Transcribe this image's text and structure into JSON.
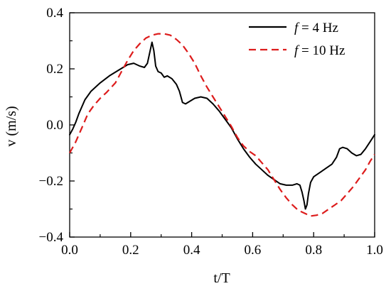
{
  "chart_data": {
    "type": "line",
    "title": "",
    "xlabel": "t/T",
    "ylabel": "v (m/s)",
    "xlim": [
      0.0,
      1.0
    ],
    "ylim": [
      -0.4,
      0.4
    ],
    "xticks": [
      "0.0",
      "0.2",
      "0.4",
      "0.6",
      "0.8",
      "1.0"
    ],
    "yticks": [
      "0.4",
      "0.2",
      "0.0",
      "−0.2",
      "−0.4"
    ],
    "grid": false,
    "legend_position": "top-right",
    "series": [
      {
        "name": "f = 4 Hz",
        "legend_italic": "f",
        "legend_rest": " = 4 Hz",
        "color": "#000000",
        "style": "solid",
        "points": [
          [
            0.0,
            -0.035
          ],
          [
            0.01,
            -0.015
          ],
          [
            0.02,
            0.01
          ],
          [
            0.03,
            0.04
          ],
          [
            0.05,
            0.09
          ],
          [
            0.07,
            0.12
          ],
          [
            0.1,
            0.15
          ],
          [
            0.13,
            0.175
          ],
          [
            0.16,
            0.195
          ],
          [
            0.19,
            0.215
          ],
          [
            0.21,
            0.22
          ],
          [
            0.23,
            0.21
          ],
          [
            0.245,
            0.205
          ],
          [
            0.255,
            0.22
          ],
          [
            0.263,
            0.26
          ],
          [
            0.27,
            0.295
          ],
          [
            0.276,
            0.265
          ],
          [
            0.282,
            0.21
          ],
          [
            0.29,
            0.19
          ],
          [
            0.3,
            0.185
          ],
          [
            0.31,
            0.17
          ],
          [
            0.32,
            0.175
          ],
          [
            0.335,
            0.165
          ],
          [
            0.35,
            0.145
          ],
          [
            0.36,
            0.12
          ],
          [
            0.37,
            0.08
          ],
          [
            0.38,
            0.075
          ],
          [
            0.395,
            0.085
          ],
          [
            0.41,
            0.095
          ],
          [
            0.43,
            0.1
          ],
          [
            0.45,
            0.095
          ],
          [
            0.47,
            0.075
          ],
          [
            0.49,
            0.05
          ],
          [
            0.51,
            0.02
          ],
          [
            0.53,
            -0.01
          ],
          [
            0.55,
            -0.05
          ],
          [
            0.57,
            -0.085
          ],
          [
            0.59,
            -0.115
          ],
          [
            0.61,
            -0.14
          ],
          [
            0.63,
            -0.16
          ],
          [
            0.65,
            -0.18
          ],
          [
            0.67,
            -0.195
          ],
          [
            0.69,
            -0.21
          ],
          [
            0.71,
            -0.215
          ],
          [
            0.73,
            -0.215
          ],
          [
            0.745,
            -0.21
          ],
          [
            0.755,
            -0.215
          ],
          [
            0.762,
            -0.24
          ],
          [
            0.768,
            -0.27
          ],
          [
            0.773,
            -0.3
          ],
          [
            0.778,
            -0.285
          ],
          [
            0.783,
            -0.245
          ],
          [
            0.79,
            -0.205
          ],
          [
            0.8,
            -0.185
          ],
          [
            0.82,
            -0.17
          ],
          [
            0.84,
            -0.155
          ],
          [
            0.86,
            -0.14
          ],
          [
            0.875,
            -0.115
          ],
          [
            0.885,
            -0.085
          ],
          [
            0.895,
            -0.08
          ],
          [
            0.91,
            -0.085
          ],
          [
            0.925,
            -0.1
          ],
          [
            0.94,
            -0.11
          ],
          [
            0.955,
            -0.105
          ],
          [
            0.97,
            -0.085
          ],
          [
            0.985,
            -0.06
          ],
          [
            1.0,
            -0.035
          ]
        ]
      },
      {
        "name": "f = 10 Hz",
        "legend_italic": "f",
        "legend_rest": " = 10 Hz",
        "color": "#dd1c1c",
        "style": "dashed",
        "points": [
          [
            0.0,
            -0.1
          ],
          [
            0.02,
            -0.06
          ],
          [
            0.04,
            -0.01
          ],
          [
            0.06,
            0.04
          ],
          [
            0.08,
            0.07
          ],
          [
            0.1,
            0.095
          ],
          [
            0.12,
            0.115
          ],
          [
            0.15,
            0.15
          ],
          [
            0.17,
            0.19
          ],
          [
            0.19,
            0.23
          ],
          [
            0.21,
            0.265
          ],
          [
            0.23,
            0.29
          ],
          [
            0.25,
            0.31
          ],
          [
            0.27,
            0.32
          ],
          [
            0.29,
            0.325
          ],
          [
            0.31,
            0.325
          ],
          [
            0.33,
            0.32
          ],
          [
            0.35,
            0.305
          ],
          [
            0.37,
            0.285
          ],
          [
            0.39,
            0.255
          ],
          [
            0.41,
            0.22
          ],
          [
            0.43,
            0.175
          ],
          [
            0.45,
            0.135
          ],
          [
            0.47,
            0.1
          ],
          [
            0.49,
            0.065
          ],
          [
            0.51,
            0.03
          ],
          [
            0.53,
            -0.005
          ],
          [
            0.55,
            -0.045
          ],
          [
            0.57,
            -0.075
          ],
          [
            0.59,
            -0.095
          ],
          [
            0.61,
            -0.11
          ],
          [
            0.63,
            -0.135
          ],
          [
            0.65,
            -0.16
          ],
          [
            0.67,
            -0.195
          ],
          [
            0.69,
            -0.23
          ],
          [
            0.71,
            -0.26
          ],
          [
            0.73,
            -0.285
          ],
          [
            0.75,
            -0.305
          ],
          [
            0.77,
            -0.315
          ],
          [
            0.79,
            -0.325
          ],
          [
            0.81,
            -0.322
          ],
          [
            0.83,
            -0.315
          ],
          [
            0.85,
            -0.3
          ],
          [
            0.87,
            -0.285
          ],
          [
            0.89,
            -0.27
          ],
          [
            0.91,
            -0.245
          ],
          [
            0.93,
            -0.22
          ],
          [
            0.95,
            -0.19
          ],
          [
            0.97,
            -0.16
          ],
          [
            0.985,
            -0.13
          ],
          [
            1.0,
            -0.105
          ]
        ]
      }
    ]
  }
}
